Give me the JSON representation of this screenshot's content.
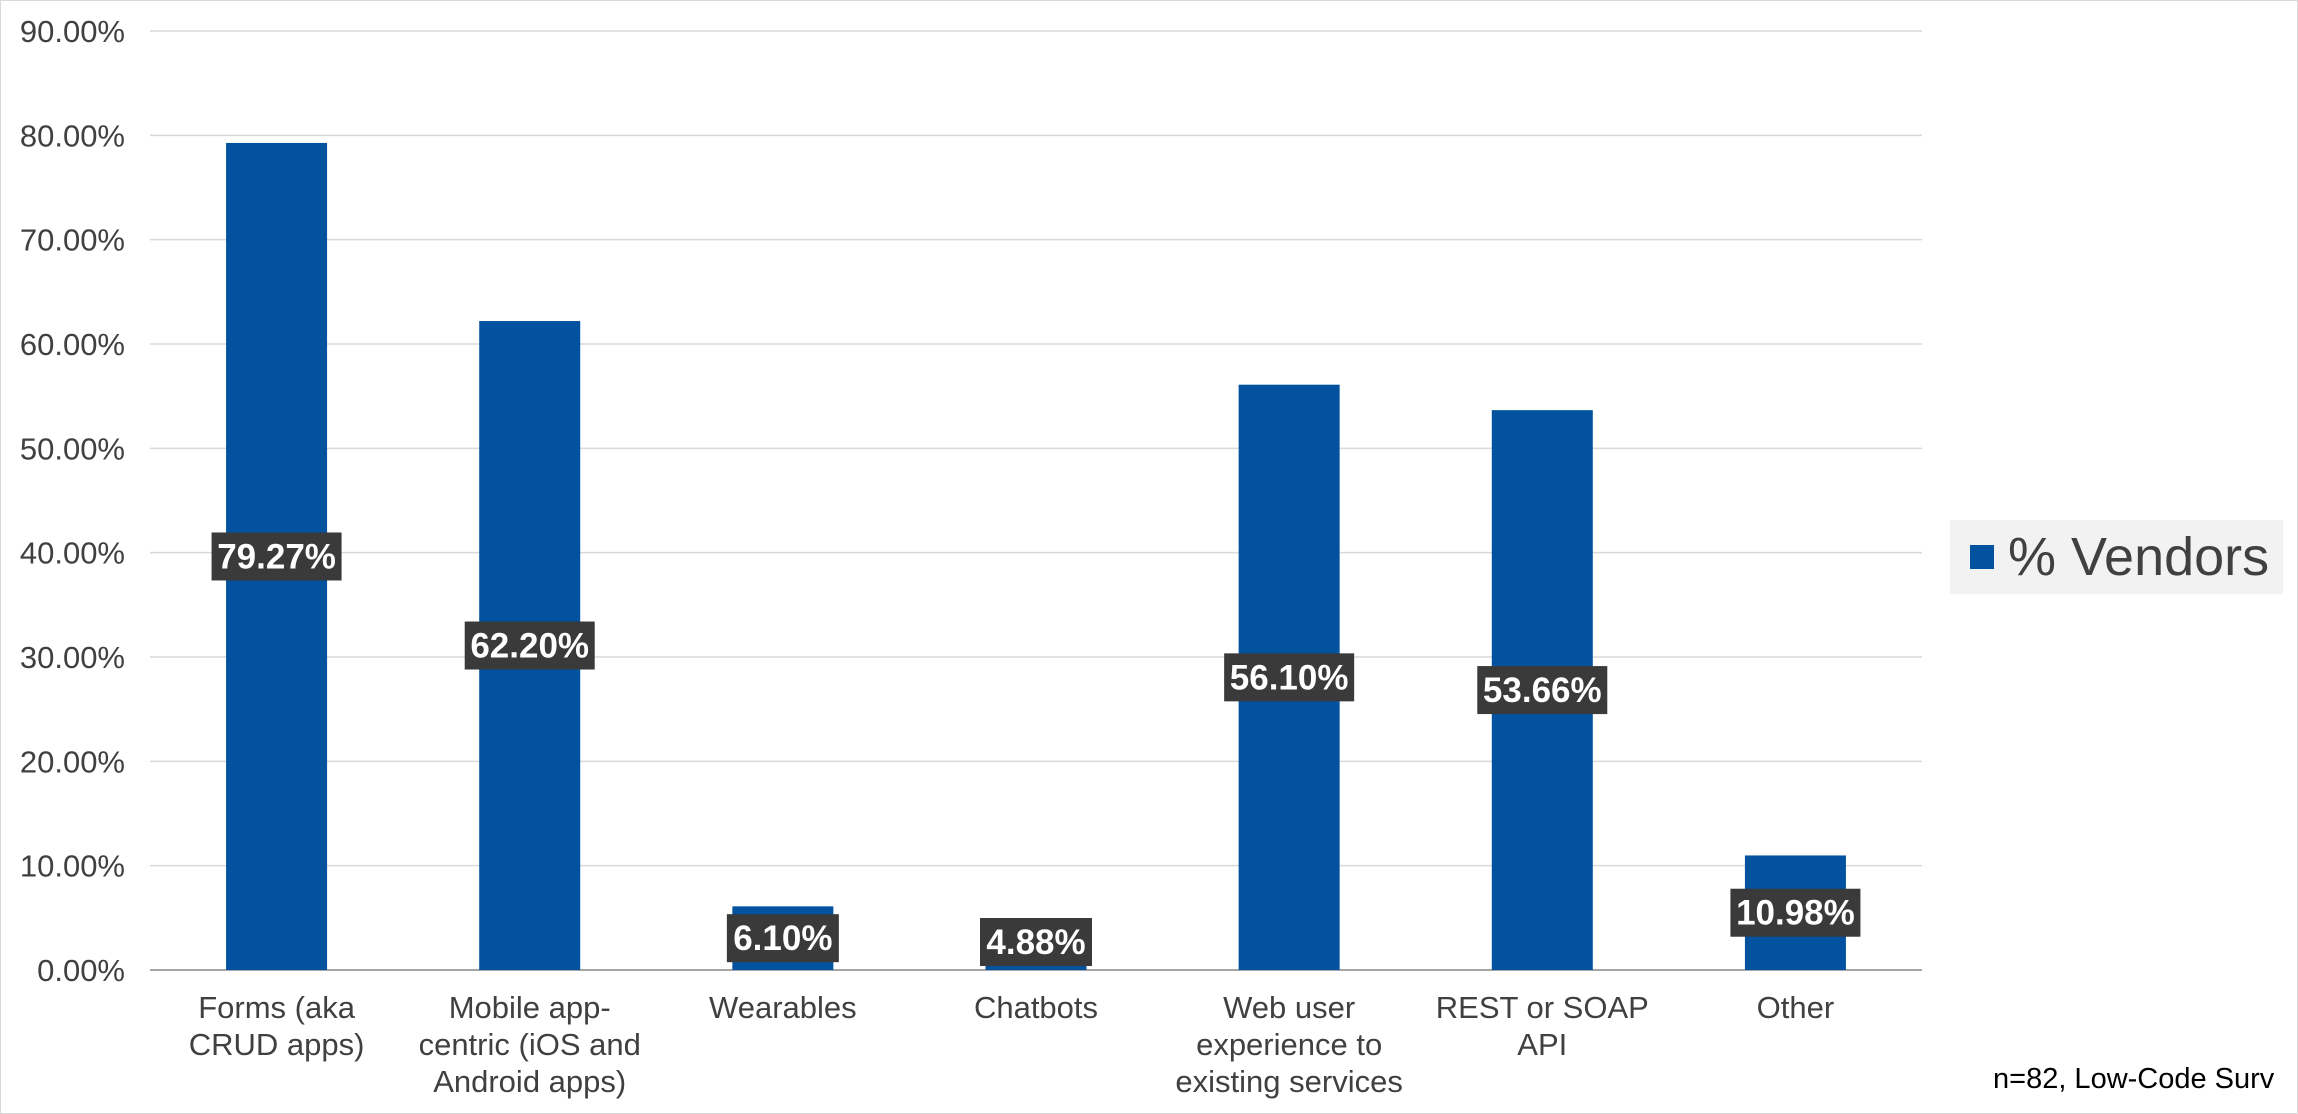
{
  "chart_data": {
    "type": "bar",
    "categories": [
      [
        "Forms (aka",
        "CRUD apps)"
      ],
      [
        "Mobile app-",
        "centric (iOS and",
        "Android apps)"
      ],
      [
        "Wearables"
      ],
      [
        "Chatbots"
      ],
      [
        "Web user",
        "experience to",
        "existing services"
      ],
      [
        "REST or SOAP",
        "API"
      ],
      [
        "Other"
      ]
    ],
    "series": [
      {
        "name": "% Vendors",
        "values": [
          79.27,
          62.2,
          6.1,
          4.88,
          56.1,
          53.66,
          10.98
        ],
        "labels": [
          "79.27%",
          "62.20%",
          "6.10%",
          "4.88%",
          "56.10%",
          "53.66%",
          "10.98%"
        ]
      }
    ],
    "ylim": [
      0,
      90
    ],
    "yticks": [
      "0.00%",
      "10.00%",
      "20.00%",
      "30.00%",
      "40.00%",
      "50.00%",
      "60.00%",
      "70.00%",
      "80.00%",
      "90.00%"
    ],
    "grid": true,
    "legend": "right",
    "bar_color": "#0252a0",
    "label_box_color": "#3a3a3a"
  },
  "note": "n=82, Low-Code Surv"
}
